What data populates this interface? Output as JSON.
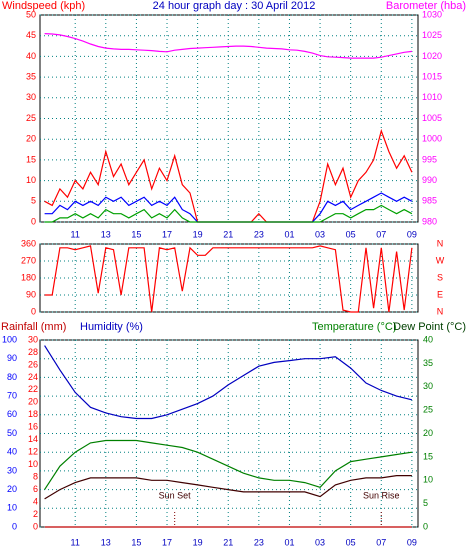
{
  "chart_data": [
    {
      "type": "line",
      "title": "24 hour graph day : 30 April 2012",
      "axis_labels": [
        "Windspeed (kph)",
        "Barometer (hba)"
      ],
      "x": [
        0,
        0.5,
        1,
        1.5,
        2,
        2.5,
        3,
        3.5,
        4,
        4.5,
        5,
        5.5,
        6,
        6.5,
        7,
        7.5,
        8,
        8.5,
        9,
        9.5,
        10,
        10.5,
        11,
        11.5,
        12,
        12.5,
        13,
        13.5,
        14,
        14.5,
        15,
        15.5,
        16,
        16.5,
        17,
        17.5,
        18,
        18.5,
        19,
        19.5,
        20,
        20.5,
        21,
        21.5,
        22,
        22.5,
        23,
        23.5,
        24
      ],
      "xlim": [
        -0.3,
        24.4
      ],
      "xticks": [
        {
          "value": 2,
          "label": "11"
        },
        {
          "value": 4,
          "label": "13"
        },
        {
          "value": 6,
          "label": "15"
        },
        {
          "value": 8,
          "label": "17"
        },
        {
          "value": 10,
          "label": "19"
        },
        {
          "value": 12,
          "label": "21"
        },
        {
          "value": 14,
          "label": "23"
        },
        {
          "value": 16,
          "label": "01"
        },
        {
          "value": 18,
          "label": "03"
        },
        {
          "value": 20,
          "label": "05"
        },
        {
          "value": 22,
          "label": "07"
        },
        {
          "value": 24,
          "label": "09"
        }
      ],
      "ylim": [
        0,
        50
      ],
      "yticks": [
        0,
        5,
        10,
        15,
        20,
        25,
        30,
        35,
        40,
        45,
        50
      ],
      "y2lim": [
        980,
        1030
      ],
      "y2ticks": [
        980,
        985,
        990,
        995,
        1000,
        1005,
        1010,
        1015,
        1020,
        1025,
        1030
      ],
      "axis_colors": {
        "y": "#ff0000",
        "y2": "#ff00ff"
      },
      "grid": true,
      "grid_axis": "y",
      "series": [
        {
          "color": "#ff0000",
          "values": [
            5,
            4,
            8,
            6,
            10,
            8,
            12,
            9,
            17,
            11,
            14,
            9,
            12,
            15,
            8,
            13,
            10,
            16,
            9,
            7,
            0,
            0,
            0,
            0,
            0,
            0,
            0,
            0,
            2,
            0,
            0,
            0,
            0,
            0,
            0,
            0,
            5,
            14,
            9,
            13,
            6,
            10,
            12,
            15,
            22,
            17,
            13,
            16,
            12
          ]
        },
        {
          "color": "#0000ff",
          "values": [
            2,
            2,
            4,
            3,
            5,
            4,
            5,
            4,
            6,
            5,
            6,
            4,
            5,
            6,
            4,
            5,
            4,
            6,
            3,
            2,
            0,
            0,
            0,
            0,
            0,
            0,
            0,
            0,
            0,
            0,
            0,
            0,
            0,
            0,
            0,
            0,
            2,
            5,
            4,
            5,
            3,
            4,
            5,
            6,
            7,
            6,
            5,
            6,
            5
          ]
        },
        {
          "color": "#00a000",
          "values": [
            0,
            0,
            1,
            1,
            2,
            1,
            2,
            1,
            3,
            2,
            2,
            1,
            2,
            3,
            1,
            2,
            1,
            3,
            1,
            0,
            0,
            0,
            0,
            0,
            0,
            0,
            0,
            0,
            0,
            0,
            0,
            0,
            0,
            0,
            0,
            0,
            0,
            1,
            2,
            2,
            1,
            2,
            3,
            3,
            4,
            3,
            2,
            3,
            2
          ]
        },
        {
          "color": "#ff00ff",
          "axis": "y2",
          "values": [
            1025.5,
            1025.4,
            1025.2,
            1024.8,
            1024.3,
            1023.7,
            1023.0,
            1022.4,
            1022.0,
            1021.8,
            1021.7,
            1021.7,
            1021.6,
            1021.5,
            1021.4,
            1021.2,
            1021.1,
            1021.5,
            1021.7,
            1021.9,
            1022.0,
            1022.1,
            1022.2,
            1022.3,
            1022.4,
            1022.5,
            1022.5,
            1022.4,
            1022.2,
            1022.0,
            1021.9,
            1021.8,
            1021.6,
            1021.5,
            1021.2,
            1020.8,
            1020.2,
            1019.9,
            1019.8,
            1019.7,
            1019.6,
            1019.6,
            1019.6,
            1019.6,
            1019.8,
            1020.2,
            1020.6,
            1021.0,
            1021.2
          ]
        }
      ]
    },
    {
      "type": "line",
      "x": [
        0,
        0.5,
        1,
        1.5,
        2,
        2.5,
        3,
        3.5,
        4,
        4.5,
        5,
        5.5,
        6,
        6.5,
        7,
        7.5,
        8,
        8.5,
        9,
        9.5,
        10,
        10.5,
        11,
        11.5,
        12,
        12.5,
        13,
        13.5,
        14,
        14.5,
        15,
        15.5,
        16,
        16.5,
        17,
        17.5,
        18,
        18.5,
        19,
        19.5,
        20,
        20.5,
        21,
        21.5,
        22,
        22.5,
        23,
        23.5,
        24
      ],
      "xlim": [
        -0.3,
        24.4
      ],
      "ylim": [
        0,
        360
      ],
      "yticks": [
        0,
        90,
        180,
        270,
        360
      ],
      "y2lim": [
        0,
        360
      ],
      "y2ticks": [
        {
          "value": 0,
          "label": "N"
        },
        {
          "value": 90,
          "label": "E"
        },
        {
          "value": 180,
          "label": "S"
        },
        {
          "value": 270,
          "label": "W"
        },
        {
          "value": 360,
          "label": "N"
        }
      ],
      "axis_colors": {
        "y": "#ff0000",
        "y2": "#ff0000"
      },
      "grid": true,
      "grid_axis": "y",
      "series": [
        {
          "color": "#ff0000",
          "values": [
            90,
            90,
            340,
            340,
            330,
            340,
            350,
            100,
            340,
            330,
            90,
            340,
            340,
            340,
            0,
            340,
            330,
            340,
            110,
            340,
            300,
            300,
            340,
            340,
            340,
            340,
            340,
            340,
            340,
            340,
            340,
            340,
            340,
            340,
            340,
            340,
            350,
            340,
            330,
            10,
            0,
            0,
            340,
            20,
            340,
            0,
            320,
            10,
            340
          ]
        }
      ]
    },
    {
      "type": "line",
      "axis_labels": [
        "Rainfall (mm)",
        "Humidity (%)",
        "Temperature (°C)",
        "Dew Point (°C)"
      ],
      "x": [
        0,
        1,
        2,
        3,
        4,
        5,
        6,
        7,
        8,
        9,
        10,
        11,
        12,
        13,
        14,
        15,
        16,
        17,
        18,
        19,
        20,
        21,
        22,
        23,
        24
      ],
      "xlim": [
        -0.3,
        24.4
      ],
      "xticks": [
        {
          "value": 2,
          "label": "11"
        },
        {
          "value": 4,
          "label": "13"
        },
        {
          "value": 6,
          "label": "15"
        },
        {
          "value": 8,
          "label": "17"
        },
        {
          "value": 10,
          "label": "19"
        },
        {
          "value": 12,
          "label": "21"
        },
        {
          "value": 14,
          "label": "23"
        },
        {
          "value": 16,
          "label": "01"
        },
        {
          "value": 18,
          "label": "03"
        },
        {
          "value": 20,
          "label": "05"
        },
        {
          "value": 22,
          "label": "07"
        },
        {
          "value": 24,
          "label": "09"
        }
      ],
      "ylim": [
        0,
        30
      ],
      "yticks": [
        0,
        2,
        4,
        6,
        8,
        10,
        12,
        14,
        16,
        18,
        20,
        22,
        24,
        26,
        28,
        30
      ],
      "y2lim": [
        0,
        100
      ],
      "y2ticks": [
        0,
        10,
        20,
        30,
        40,
        50,
        60,
        70,
        80,
        90,
        100
      ],
      "y3lim": [
        0,
        40
      ],
      "y3ticks": [
        0,
        5,
        10,
        15,
        20,
        25,
        30,
        35,
        40
      ],
      "axis_colors": {
        "y": "#ff0000",
        "y2": "#0000ff",
        "y3": "#008000"
      },
      "grid": true,
      "grid_axis": "y2",
      "annotations": [
        {
          "text": "Sun Set",
          "x": 8.5
        },
        {
          "text": "Sun Rise",
          "x": 22
        }
      ],
      "series": [
        {
          "color": "#0000c0",
          "axis": "y2",
          "values": [
            97,
            84,
            72,
            64,
            61,
            59,
            58,
            58,
            60,
            63,
            66,
            70,
            76,
            81,
            86,
            88,
            89,
            90,
            90,
            91,
            85,
            77,
            73,
            70,
            68
          ]
        },
        {
          "color": "#008000",
          "axis": "y3",
          "values": [
            8,
            13,
            16,
            18,
            18.5,
            18.5,
            18.5,
            18,
            17.5,
            17,
            16,
            14.5,
            13,
            11.5,
            10.5,
            10,
            10,
            9.5,
            8.5,
            12,
            14,
            14.5,
            15,
            15.5,
            16
          ]
        },
        {
          "color": "#400000",
          "axis": "y3",
          "values": [
            6,
            8,
            9.5,
            10.5,
            10.5,
            10.5,
            10.5,
            10,
            10,
            9.5,
            9,
            8.5,
            8,
            7.5,
            7.5,
            7.5,
            7.5,
            7.5,
            6.5,
            9,
            10,
            10.5,
            10.5,
            11,
            11
          ]
        },
        {
          "color": "#c00000",
          "values": [
            0,
            0,
            0,
            0,
            0,
            0,
            0,
            0,
            0,
            0,
            0,
            0,
            0,
            0,
            0,
            0,
            0,
            0,
            0,
            0,
            0,
            0,
            0,
            0,
            0
          ]
        }
      ]
    }
  ]
}
